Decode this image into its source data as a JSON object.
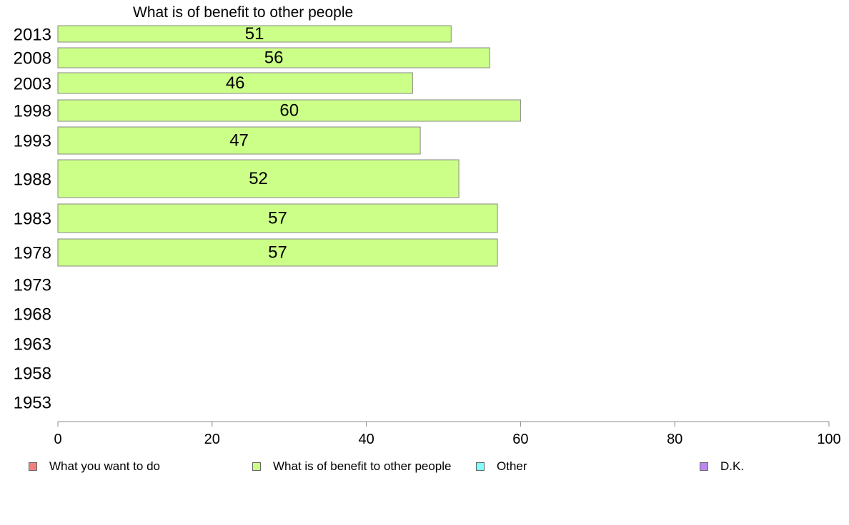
{
  "chart_data": {
    "type": "bar",
    "orientation": "horizontal",
    "title": "What is of benefit to other people",
    "categories": [
      "2013",
      "2008",
      "2003",
      "1998",
      "1993",
      "1988",
      "1983",
      "1978",
      "1973",
      "1968",
      "1963",
      "1958",
      "1953"
    ],
    "series": [
      {
        "name": "What is of benefit to other people",
        "color": "#ccff88",
        "values": [
          51,
          56,
          46,
          60,
          47,
          52,
          57,
          57,
          null,
          null,
          null,
          null,
          null
        ]
      }
    ],
    "data_labels": [
      "51",
      "56",
      "46",
      "60",
      "47",
      "52",
      "57",
      "57",
      "",
      "",
      "",
      "",
      ""
    ],
    "xlim": [
      0,
      100
    ],
    "xticks": [
      "0",
      "20",
      "40",
      "60",
      "80",
      "100"
    ],
    "grid": false,
    "legend_position": "bottom"
  },
  "legend": {
    "items": [
      {
        "label": "What you want to do",
        "color": "#f08080"
      },
      {
        "label": "What is of benefit to other people",
        "color": "#ccff88"
      },
      {
        "label": "Other",
        "color": "#80ffff"
      },
      {
        "label": "D.K.",
        "color": "#bb88ee"
      }
    ]
  }
}
